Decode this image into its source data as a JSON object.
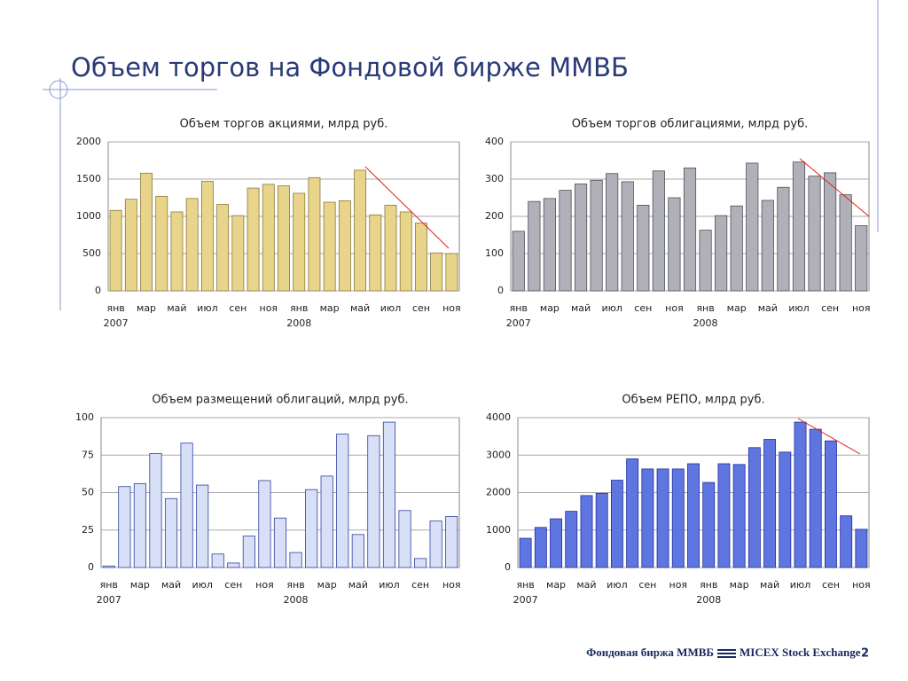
{
  "title": "Объем торгов на Фондовой бирже ММВБ",
  "footer": {
    "left": "Фондовая биржа ММВБ",
    "right": "MICEX Stock Exchange",
    "page": "2"
  },
  "chart_data": [
    {
      "type": "bar",
      "title": "Объем торгов акциями, млрд руб.",
      "color": "#e8d48a",
      "edge": "#8a7a3a",
      "categories": [
        "янв",
        null,
        "мар",
        null,
        "май",
        null,
        "июл",
        null,
        "сен",
        null,
        "ноя",
        null,
        "янв",
        null,
        "мар",
        null,
        "май",
        null,
        "июл",
        null,
        "сен",
        null,
        "ноя"
      ],
      "category_groups": [
        "2007",
        "2008"
      ],
      "values": [
        1080,
        1230,
        1580,
        1270,
        1060,
        1240,
        1470,
        1160,
        1010,
        1380,
        1430,
        1410,
        1310,
        1520,
        1190,
        1210,
        1620,
        1020,
        1150,
        1060,
        910,
        510,
        500
      ],
      "ylim": [
        0,
        2000
      ],
      "yticks": [
        0,
        500,
        1000,
        1500,
        2000
      ],
      "grid": true
    },
    {
      "type": "bar",
      "title": "Объем торгов облигациями, млрд руб.",
      "color": "#b0b0b8",
      "edge": "#505058",
      "categories": [
        "янв",
        null,
        "мар",
        null,
        "май",
        null,
        "июл",
        null,
        "сен",
        null,
        "ноя",
        null,
        "янв",
        null,
        "мар",
        null,
        "май",
        null,
        "июл",
        null,
        "сен",
        null,
        "ноя"
      ],
      "category_groups": [
        "2007",
        "2008"
      ],
      "values": [
        160,
        240,
        248,
        270,
        287,
        297,
        315,
        293,
        230,
        322,
        250,
        330,
        163,
        202,
        228,
        343,
        243,
        278,
        346,
        308,
        317,
        258,
        175
      ],
      "ylim": [
        0,
        400
      ],
      "yticks": [
        0,
        100,
        200,
        300,
        400
      ],
      "grid": true
    },
    {
      "type": "bar",
      "title": "Объем размещений облигаций, млрд руб.",
      "color": "#d8e0f8",
      "edge": "#3040a0",
      "categories": [
        "янв",
        null,
        "мар",
        null,
        "май",
        null,
        "июл",
        null,
        "сен",
        null,
        "ноя",
        null,
        "янв",
        null,
        "мар",
        null,
        "май",
        null,
        "июл",
        null,
        "сен",
        null,
        "ноя"
      ],
      "category_groups": [
        "2007",
        "2008"
      ],
      "values": [
        1,
        54,
        56,
        76,
        46,
        83,
        55,
        9,
        3,
        21,
        58,
        33,
        10,
        52,
        61,
        89,
        22,
        88,
        97,
        38,
        6,
        31,
        34
      ],
      "ylim": [
        0,
        100
      ],
      "yticks": [
        0,
        25,
        50,
        75,
        100
      ],
      "grid": true
    },
    {
      "type": "bar",
      "title": "Объем РЕПО, млрд руб.",
      "color": "#5f75e0",
      "edge": "#2030a0",
      "categories": [
        "янв",
        null,
        "мар",
        null,
        "май",
        null,
        "июл",
        null,
        "сен",
        null,
        "ноя",
        null,
        "янв",
        null,
        "мар",
        null,
        "май",
        null,
        "июл",
        null,
        "сен",
        null,
        "ноя"
      ],
      "category_groups": [
        "2007",
        "2008"
      ],
      "values": [
        780,
        1070,
        1300,
        1500,
        1920,
        1980,
        2330,
        2900,
        2630,
        2630,
        2630,
        2770,
        2270,
        2770,
        2750,
        3200,
        3420,
        3080,
        3880,
        3690,
        3380,
        1380,
        1020
      ],
      "ylim": [
        0,
        4000
      ],
      "yticks": [
        0,
        1000,
        2000,
        3000,
        4000
      ],
      "grid": true
    }
  ]
}
